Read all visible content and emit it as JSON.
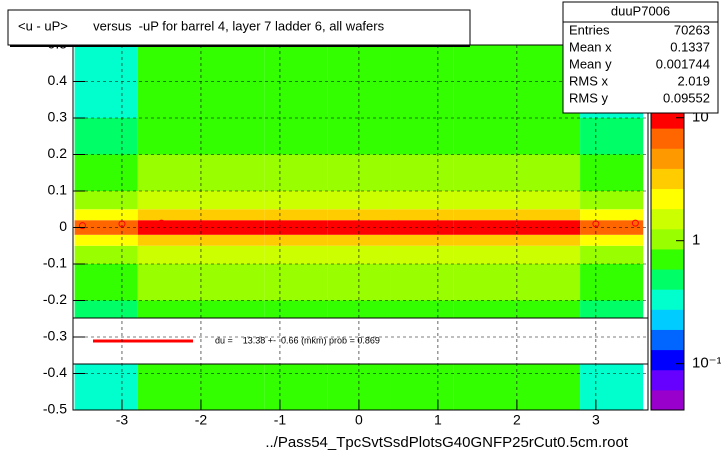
{
  "chart_data": {
    "type": "heatmap",
    "title": "<u - uP>       versus  -uP for barrel 4, layer 7 ladder 6, all wafers",
    "xlabel": "../Pass54_TpcSvtSsdPlotsG40GNFP25rCut0.5cm.root",
    "xlim": [
      -3.62,
      3.66
    ],
    "ylim": [
      -0.5,
      0.5
    ],
    "xticks": [
      -3,
      -2,
      -1,
      0,
      1,
      2,
      3
    ],
    "yticks": [
      -0.5,
      -0.4,
      -0.3,
      -0.2,
      -0.1,
      0,
      0.1,
      0.2,
      0.3,
      0.4,
      0.5
    ],
    "grid": true,
    "x_edges": [
      -3.6,
      -2.8,
      -2,
      -1.2,
      -0.4,
      0.4,
      1.2,
      2,
      2.8,
      3.6
    ],
    "y_edges": [
      -0.5,
      -0.4,
      -0.3,
      -0.2,
      -0.1,
      -0.05,
      -0.02,
      0.02,
      0.05,
      0.1,
      0.2,
      0.3,
      0.4,
      0.5
    ],
    "values": [
      [
        0.4,
        0.6,
        0.6,
        0.6,
        0.6,
        0.6,
        0.6,
        0.6,
        0.4
      ],
      [
        0.4,
        0.6,
        0.6,
        0.6,
        0.6,
        0.6,
        0.6,
        0.6,
        0.4
      ],
      [
        0.5,
        0.7,
        0.7,
        0.7,
        0.7,
        0.7,
        0.7,
        0.7,
        0.5
      ],
      [
        0.6,
        0.9,
        0.9,
        0.9,
        0.9,
        0.9,
        0.9,
        0.9,
        0.6
      ],
      [
        1,
        1.5,
        1.5,
        1.5,
        1.5,
        1.5,
        1.5,
        1.5,
        1
      ],
      [
        2,
        3,
        3,
        3,
        3,
        3,
        3,
        3,
        2
      ],
      [
        6,
        10,
        10,
        10,
        10,
        10,
        10,
        10,
        6
      ],
      [
        2,
        3,
        3,
        3,
        3,
        3,
        3,
        3,
        2
      ],
      [
        1,
        1.5,
        1.5,
        1.5,
        1.5,
        1.5,
        1.5,
        1.5,
        1
      ],
      [
        0.6,
        0.9,
        0.9,
        0.9,
        0.9,
        0.9,
        0.9,
        0.9,
        0.6
      ],
      [
        0.5,
        0.7,
        0.7,
        0.7,
        0.7,
        0.7,
        0.7,
        0.7,
        0.5
      ],
      [
        0.4,
        0.6,
        0.6,
        0.6,
        0.6,
        0.6,
        0.6,
        0.6,
        0.4
      ],
      [
        0.4,
        0.6,
        0.6,
        0.6,
        0.6,
        0.6,
        0.6,
        0.6,
        0.4
      ]
    ],
    "log_z": true,
    "zlim": [
      0.042,
      12
    ],
    "zticks": [
      {
        "value": 0.1,
        "label": "10⁻¹"
      },
      1,
      10
    ],
    "palette": [
      "#9900cc",
      "#6600ff",
      "#0000ff",
      "#0066ff",
      "#00ccff",
      "#00ffcc",
      "#00ff66",
      "#33ff00",
      "#99ff00",
      "#ccff00",
      "#ffff00",
      "#ffcc00",
      "#ff9900",
      "#ff6600",
      "#ff0000"
    ],
    "profile": {
      "color": "#ff0000",
      "x": [
        -3.5,
        -3,
        -2.5,
        -2,
        -1.5,
        -1,
        -0.5,
        0,
        0.5,
        1,
        1.5,
        2,
        2.5,
        3,
        3.5
      ],
      "values": [
        0.005,
        0.01,
        0.012,
        0.01,
        0.008,
        0.01,
        0.009,
        0.008,
        0.01,
        0.009,
        0.008,
        0.01,
        0.007,
        0.01,
        0.012
      ]
    },
    "fit_legend": {
      "color": "#ff0000",
      "text": "du =    13.38 +-  0.66 (mkm) prob = 0.869"
    },
    "stats": {
      "title": "duuP7006",
      "rows": [
        [
          "Entries",
          70263
        ],
        [
          "Mean x",
          0.1337
        ],
        [
          "Mean y",
          0.001744
        ],
        [
          "RMS x",
          2.019
        ],
        [
          "RMS y",
          0.09552
        ]
      ]
    }
  }
}
